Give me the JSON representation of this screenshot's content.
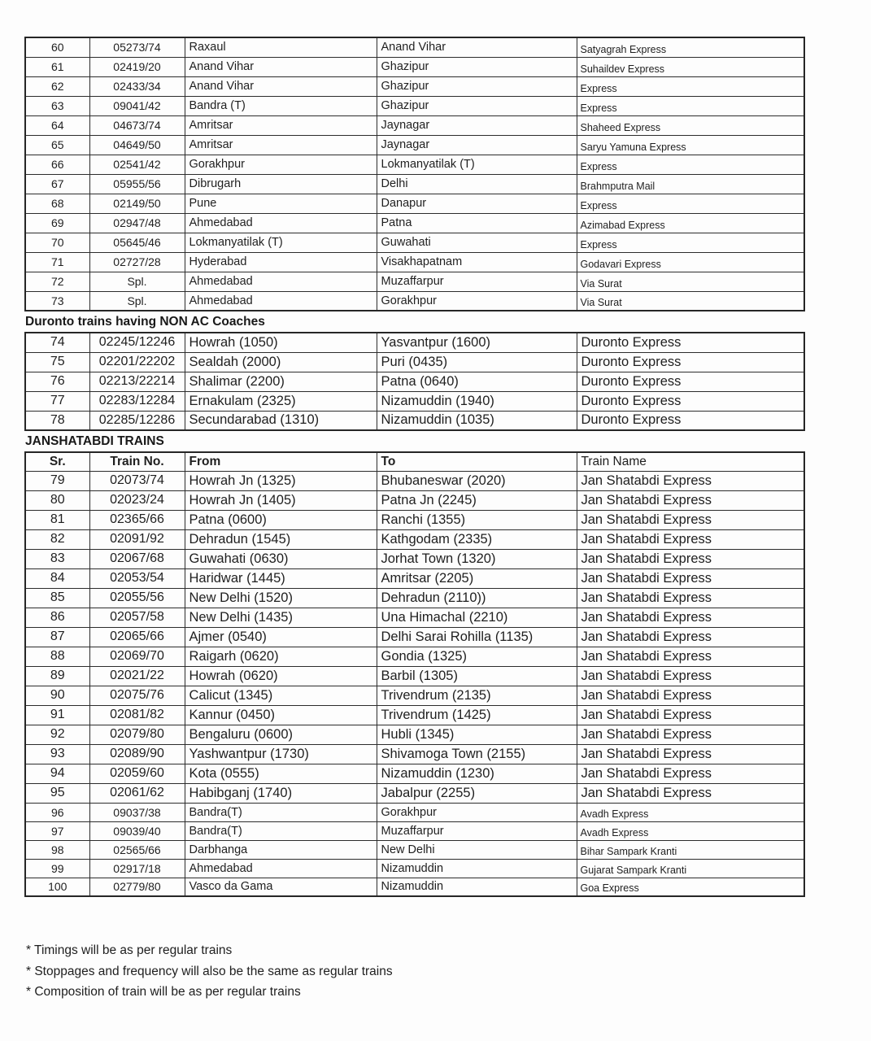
{
  "document": {
    "tables": {
      "regular": {
        "rows": [
          {
            "sr": "60",
            "no": "05273/74",
            "from": "Raxaul",
            "to": "Anand Vihar",
            "name": "Satyagrah Express"
          },
          {
            "sr": "61",
            "no": "02419/20",
            "from": "Anand Vihar",
            "to": "Ghazipur",
            "name": "Suhaildev Express"
          },
          {
            "sr": "62",
            "no": "02433/34",
            "from": "Anand Vihar",
            "to": "Ghazipur",
            "name": "Express"
          },
          {
            "sr": "63",
            "no": "09041/42",
            "from": "Bandra (T)",
            "to": "Ghazipur",
            "name": "Express"
          },
          {
            "sr": "64",
            "no": "04673/74",
            "from": "Amritsar",
            "to": "Jaynagar",
            "name": "Shaheed Express"
          },
          {
            "sr": "65",
            "no": "04649/50",
            "from": "Amritsar",
            "to": "Jaynagar",
            "name": "Saryu Yamuna Express"
          },
          {
            "sr": "66",
            "no": "02541/42",
            "from": "Gorakhpur",
            "to": "Lokmanyatilak (T)",
            "name": "Express"
          },
          {
            "sr": "67",
            "no": "05955/56",
            "from": "Dibrugarh",
            "to": "Delhi",
            "name": "Brahmputra Mail"
          },
          {
            "sr": "68",
            "no": "02149/50",
            "from": "Pune",
            "to": "Danapur",
            "name": "Express"
          },
          {
            "sr": "69",
            "no": "02947/48",
            "from": "Ahmedabad",
            "to": "Patna",
            "name": "Azimabad Express"
          },
          {
            "sr": "70",
            "no": "05645/46",
            "from": "Lokmanyatilak (T)",
            "to": "Guwahati",
            "name": "Express"
          },
          {
            "sr": "71",
            "no": "02727/28",
            "from": "Hyderabad",
            "to": "Visakhapatnam",
            "name": "Godavari Express"
          },
          {
            "sr": "72",
            "no": "Spl.",
            "from": "Ahmedabad",
            "to": "Muzaffarpur",
            "name": "Via Surat"
          },
          {
            "sr": "73",
            "no": "Spl.",
            "from": "Ahmedabad",
            "to": "Gorakhpur",
            "name": "Via Surat"
          }
        ]
      },
      "duronto": {
        "title": "Duronto trains having NON AC Coaches",
        "rows": [
          {
            "sr": "74",
            "no": "02245/12246",
            "from": "Howrah (1050)",
            "to": "Yasvantpur (1600)",
            "name": "Duronto Express"
          },
          {
            "sr": "75",
            "no": "02201/22202",
            "from": "Sealdah (2000)",
            "to": "Puri (0435)",
            "name": "Duronto Express"
          },
          {
            "sr": "76",
            "no": "02213/22214",
            "from": "Shalimar (2200)",
            "to": "Patna (0640)",
            "name": "Duronto Express"
          },
          {
            "sr": "77",
            "no": "02283/12284",
            "from": "Ernakulam (2325)",
            "to": "Nizamuddin (1940)",
            "name": "Duronto Express"
          },
          {
            "sr": "78",
            "no": "02285/12286",
            "from": "Secundarabad (1310)",
            "to": "Nizamuddin (1035)",
            "name": "Duronto Express"
          }
        ]
      },
      "janshatabdi": {
        "title": "JANSHATABDI TRAINS",
        "header": {
          "sr": "Sr.",
          "no": "Train No.",
          "from": "From",
          "to": "To",
          "name": "Train Name"
        },
        "rows_large": [
          {
            "sr": "79",
            "no": "02073/74",
            "from": "Howrah Jn (1325)",
            "to": "Bhubaneswar (2020)",
            "name": "Jan Shatabdi Express"
          },
          {
            "sr": "80",
            "no": "02023/24",
            "from": "Howrah Jn (1405)",
            "to": "Patna Jn (2245)",
            "name": "Jan Shatabdi Express"
          },
          {
            "sr": "81",
            "no": "02365/66",
            "from": "Patna (0600)",
            "to": "Ranchi (1355)",
            "name": "Jan Shatabdi Express"
          },
          {
            "sr": "82",
            "no": "02091/92",
            "from": "Dehradun (1545)",
            "to": "Kathgodam (2335)",
            "name": "Jan Shatabdi Express"
          },
          {
            "sr": "83",
            "no": "02067/68",
            "from": "Guwahati (0630)",
            "to": "Jorhat Town (1320)",
            "name": "Jan Shatabdi Express"
          },
          {
            "sr": "84",
            "no": "02053/54",
            "from": "Haridwar (1445)",
            "to": "Amritsar (2205)",
            "name": "Jan Shatabdi Express"
          },
          {
            "sr": "85",
            "no": "02055/56",
            "from": "New Delhi (1520)",
            "to": "Dehradun (2110))",
            "name": "Jan Shatabdi Express"
          },
          {
            "sr": "86",
            "no": "02057/58",
            "from": "New Delhi (1435)",
            "to": "Una Himachal (2210)",
            "name": "Jan Shatabdi Express"
          },
          {
            "sr": "87",
            "no": "02065/66",
            "from": "Ajmer (0540)",
            "to": "Delhi Sarai Rohilla (1135)",
            "name": "Jan Shatabdi Express"
          },
          {
            "sr": "88",
            "no": "02069/70",
            "from": "Raigarh (0620)",
            "to": "Gondia (1325)",
            "name": "Jan Shatabdi Express"
          },
          {
            "sr": "89",
            "no": "02021/22",
            "from": "Howrah (0620)",
            "to": "Barbil (1305)",
            "name": "Jan Shatabdi Express"
          },
          {
            "sr": "90",
            "no": "02075/76",
            "from": "Calicut (1345)",
            "to": "Trivendrum (2135)",
            "name": "Jan Shatabdi Express"
          },
          {
            "sr": "91",
            "no": "02081/82",
            "from": "Kannur (0450)",
            "to": "Trivendrum (1425)",
            "name": "Jan Shatabdi Express"
          },
          {
            "sr": "92",
            "no": "02079/80",
            "from": "Bengaluru (0600)",
            "to": "Hubli (1345)",
            "name": "Jan Shatabdi Express"
          },
          {
            "sr": "93",
            "no": "02089/90",
            "from": "Yashwantpur (1730)",
            "to": "Shivamoga Town (2155)",
            "name": "Jan Shatabdi Express"
          },
          {
            "sr": "94",
            "no": "02059/60",
            "from": "Kota (0555)",
            "to": "Nizamuddin (1230)",
            "name": "Jan Shatabdi Express"
          },
          {
            "sr": "95",
            "no": "02061/62",
            "from": "Habibganj (1740)",
            "to": "Jabalpur (2255)",
            "name": "Jan Shatabdi Express"
          }
        ],
        "rows_small": [
          {
            "sr": "96",
            "no": "09037/38",
            "from": "Bandra(T)",
            "to": "Gorakhpur",
            "name": "Avadh Express"
          },
          {
            "sr": "97",
            "no": "09039/40",
            "from": "Bandra(T)",
            "to": "Muzaffarpur",
            "name": "Avadh Express"
          },
          {
            "sr": "98",
            "no": "02565/66",
            "from": "Darbhanga",
            "to": "New Delhi",
            "name": "Bihar Sampark Kranti"
          },
          {
            "sr": "99",
            "no": "02917/18",
            "from": "Ahmedabad",
            "to": "Nizamuddin",
            "name": "Gujarat Sampark Kranti"
          },
          {
            "sr": "100",
            "no": "02779/80",
            "from": "Vasco da Gama",
            "to": "Nizamuddin",
            "name": "Goa Express"
          }
        ]
      }
    },
    "footnotes": [
      "* Timings will be as per regular trains",
      "* Stoppages and frequency will also be the same as regular trains",
      "* Composition of train will be as per regular trains"
    ]
  }
}
